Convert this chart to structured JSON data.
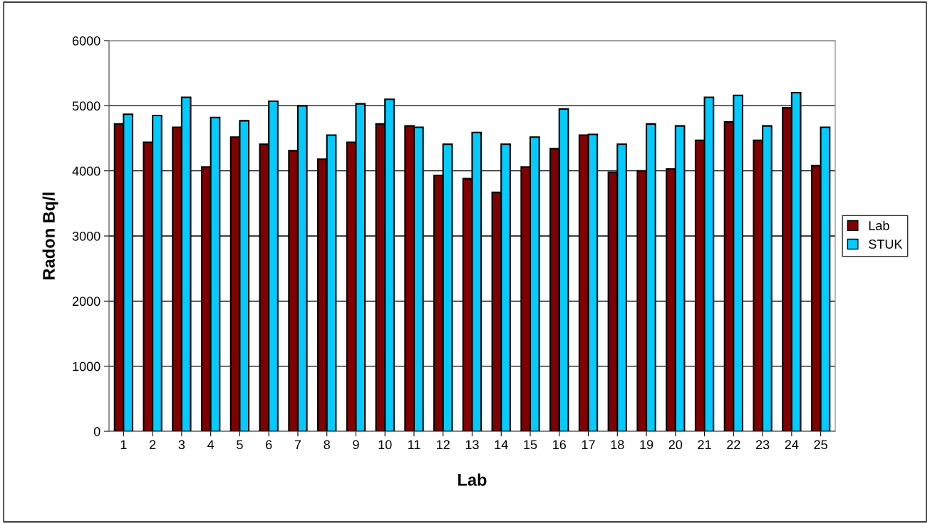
{
  "chart_data": {
    "type": "bar",
    "xlabel": "Lab",
    "ylabel": "Radon Bq/l",
    "categories": [
      "1",
      "2",
      "3",
      "4",
      "5",
      "6",
      "7",
      "8",
      "9",
      "10",
      "11",
      "12",
      "13",
      "14",
      "15",
      "16",
      "17",
      "18",
      "19",
      "20",
      "21",
      "22",
      "23",
      "24",
      "25"
    ],
    "series": [
      {
        "name": "Lab",
        "color": "#800000",
        "values": [
          4720,
          4440,
          4670,
          4060,
          4520,
          4410,
          4310,
          4180,
          4440,
          4720,
          4690,
          3930,
          3880,
          3670,
          4060,
          4340,
          4550,
          3980,
          4000,
          4030,
          4470,
          4750,
          4470,
          4970,
          4080
        ]
      },
      {
        "name": "STUK",
        "color": "#00ccff",
        "values": [
          4870,
          4850,
          5130,
          4820,
          4770,
          5070,
          5000,
          4550,
          5030,
          5100,
          4670,
          4410,
          4590,
          4410,
          4520,
          4950,
          4560,
          4410,
          4720,
          4690,
          5130,
          5160,
          4690,
          5200,
          4670
        ]
      }
    ],
    "ylim": [
      0,
      6000
    ],
    "yticks": [
      0,
      1000,
      2000,
      3000,
      4000,
      5000,
      6000
    ],
    "grid": "y",
    "legend": "right"
  }
}
